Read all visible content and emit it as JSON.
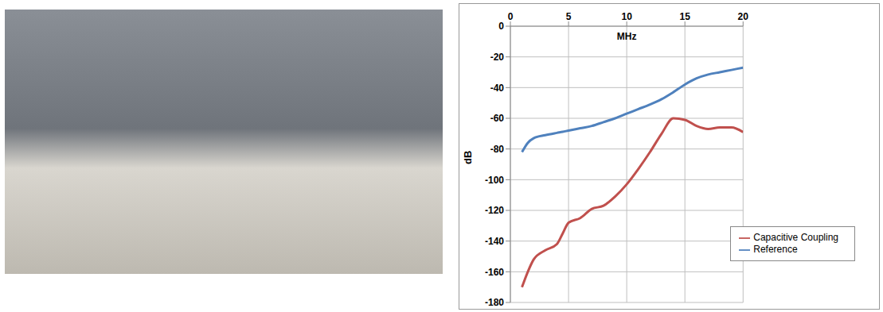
{
  "chart_data": {
    "type": "line",
    "x_label": "MHz",
    "y_label": "dB",
    "x": [
      1,
      1.5,
      2,
      3,
      4,
      4.5,
      5,
      6,
      7,
      8,
      9,
      10,
      11,
      12,
      13,
      14,
      15,
      16,
      17,
      18,
      19,
      20
    ],
    "series": [
      {
        "name": "Reference",
        "color": "#4f81bd",
        "marker": "none",
        "line_style": "solid",
        "values": [
          -82,
          -76,
          -73,
          -71,
          -69.5,
          -68.8,
          -68,
          -66.5,
          -65,
          -62.5,
          -60,
          -57,
          -54,
          -51,
          -47.5,
          -43,
          -38,
          -34,
          -31.5,
          -30,
          -28.5,
          -27
        ]
      },
      {
        "name": "Capacitive Coupling",
        "color": "#c0504d",
        "marker": "none",
        "line_style": "solid",
        "values": [
          -170,
          -160,
          -152,
          -146,
          -142,
          -135,
          -128,
          -125,
          -119,
          -117,
          -111,
          -103,
          -93,
          -82,
          -70,
          -60,
          -61,
          -65,
          -67,
          -66,
          -66,
          -69
        ]
      }
    ],
    "xlim": [
      0,
      20
    ],
    "xticks": [
      0,
      5,
      10,
      15,
      20
    ],
    "ylim": [
      -180,
      0
    ],
    "yticks": [
      -180,
      -160,
      -140,
      -120,
      -100,
      -80,
      -60,
      -40,
      -20,
      0
    ],
    "grid": true,
    "legend": "lower right"
  }
}
